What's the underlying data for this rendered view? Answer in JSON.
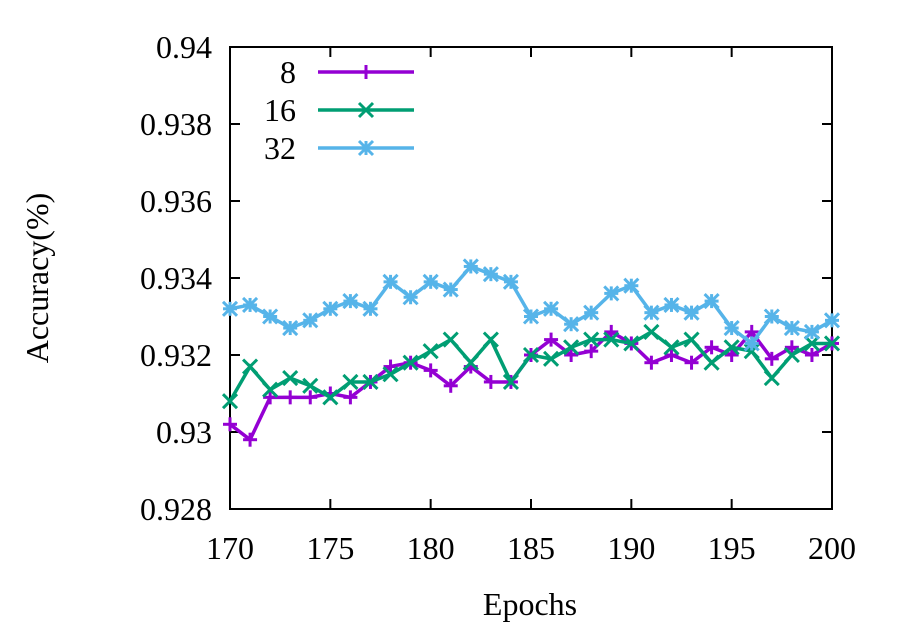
{
  "chart_data": {
    "type": "line",
    "title": "",
    "xlabel": "Epochs",
    "ylabel": "Accuracy(%)",
    "xlim": [
      170,
      200
    ],
    "ylim": [
      0.928,
      0.94
    ],
    "xticks": [
      170,
      175,
      180,
      185,
      190,
      195,
      200
    ],
    "xtick_labels": [
      "170",
      "175",
      "180",
      "185",
      "190",
      "195",
      "200"
    ],
    "yticks": [
      0.928,
      0.93,
      0.932,
      0.934,
      0.936,
      0.938,
      0.94
    ],
    "ytick_labels": [
      "0.928",
      "0.93",
      "0.932",
      "0.934",
      "0.936",
      "0.938",
      "0.94"
    ],
    "grid": false,
    "legend_position": "top-left",
    "x": [
      170,
      171,
      172,
      173,
      174,
      175,
      176,
      177,
      178,
      179,
      180,
      181,
      182,
      183,
      184,
      185,
      186,
      187,
      188,
      189,
      190,
      191,
      192,
      193,
      194,
      195,
      196,
      197,
      198,
      199,
      200
    ],
    "series": [
      {
        "name": "8",
        "color": "#9400d3",
        "marker": "plus",
        "values": [
          0.9302,
          0.9298,
          0.9309,
          0.9309,
          0.9309,
          0.931,
          0.9309,
          0.9313,
          0.9317,
          0.9318,
          0.9316,
          0.9312,
          0.9317,
          0.9313,
          0.9313,
          0.932,
          0.9324,
          0.932,
          0.9321,
          0.9326,
          0.9323,
          0.9318,
          0.932,
          0.9318,
          0.9322,
          0.932,
          0.9326,
          0.9319,
          0.9322,
          0.932,
          0.9323
        ]
      },
      {
        "name": "16",
        "color": "#009e73",
        "marker": "x",
        "values": [
          0.9308,
          0.9317,
          0.9311,
          0.9314,
          0.9312,
          0.9309,
          0.9313,
          0.9313,
          0.9315,
          0.9318,
          0.9321,
          0.9324,
          0.9318,
          0.9324,
          0.9313,
          0.932,
          0.9319,
          0.9322,
          0.9324,
          0.9324,
          0.9323,
          0.9326,
          0.9322,
          0.9324,
          0.9318,
          0.9322,
          0.9321,
          0.9314,
          0.932,
          0.9323,
          0.9323
        ]
      },
      {
        "name": "32",
        "color": "#56b4e9",
        "marker": "star",
        "values": [
          0.9332,
          0.9333,
          0.933,
          0.9327,
          0.9329,
          0.9332,
          0.9334,
          0.9332,
          0.9339,
          0.9335,
          0.9339,
          0.9337,
          0.9343,
          0.9341,
          0.9339,
          0.933,
          0.9332,
          0.9328,
          0.9331,
          0.9336,
          0.9338,
          0.9331,
          0.9333,
          0.9331,
          0.9334,
          0.9327,
          0.9323,
          0.933,
          0.9327,
          0.9326,
          0.9329
        ]
      }
    ]
  }
}
